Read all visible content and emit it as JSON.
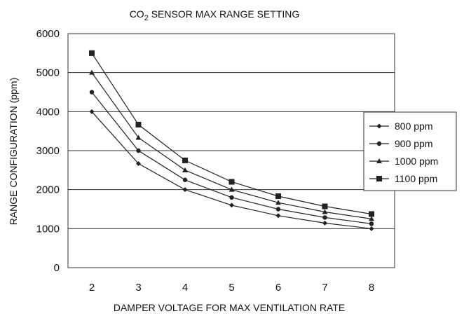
{
  "chart_data": {
    "type": "line",
    "title_prefix": "CO",
    "title_sub": "2",
    "title_rest": " SENSOR MAX RANGE SETTING",
    "xlabel": "DAMPER VOLTAGE FOR MAX VENTILATION RATE",
    "ylabel": "RANGE CONFIGURATION (ppm)",
    "categories": [
      "2",
      "3",
      "4",
      "5",
      "6",
      "7",
      "8"
    ],
    "x": [
      2,
      3,
      4,
      5,
      6,
      7,
      8
    ],
    "ylim": [
      0,
      6000
    ],
    "yticks": [
      "0",
      "1000",
      "2000",
      "3000",
      "4000",
      "5000",
      "6000"
    ],
    "grid": "horizontal",
    "legend_position": "right",
    "series": [
      {
        "name": "800 ppm",
        "marker": "diamond",
        "values": [
          4000,
          2667,
          2000,
          1600,
          1333,
          1143,
          1000
        ]
      },
      {
        "name": "900 ppm",
        "marker": "circle",
        "values": [
          4500,
          3000,
          2250,
          1800,
          1500,
          1286,
          1125
        ]
      },
      {
        "name": "1000 ppm",
        "marker": "triangle",
        "values": [
          5000,
          3333,
          2500,
          2000,
          1667,
          1429,
          1250
        ]
      },
      {
        "name": "1100 ppm",
        "marker": "square",
        "values": [
          5500,
          3667,
          2750,
          2200,
          1833,
          1571,
          1375
        ]
      }
    ],
    "colors": {
      "line": "#222222",
      "grid": "#333333",
      "background": "#ffffff"
    }
  }
}
